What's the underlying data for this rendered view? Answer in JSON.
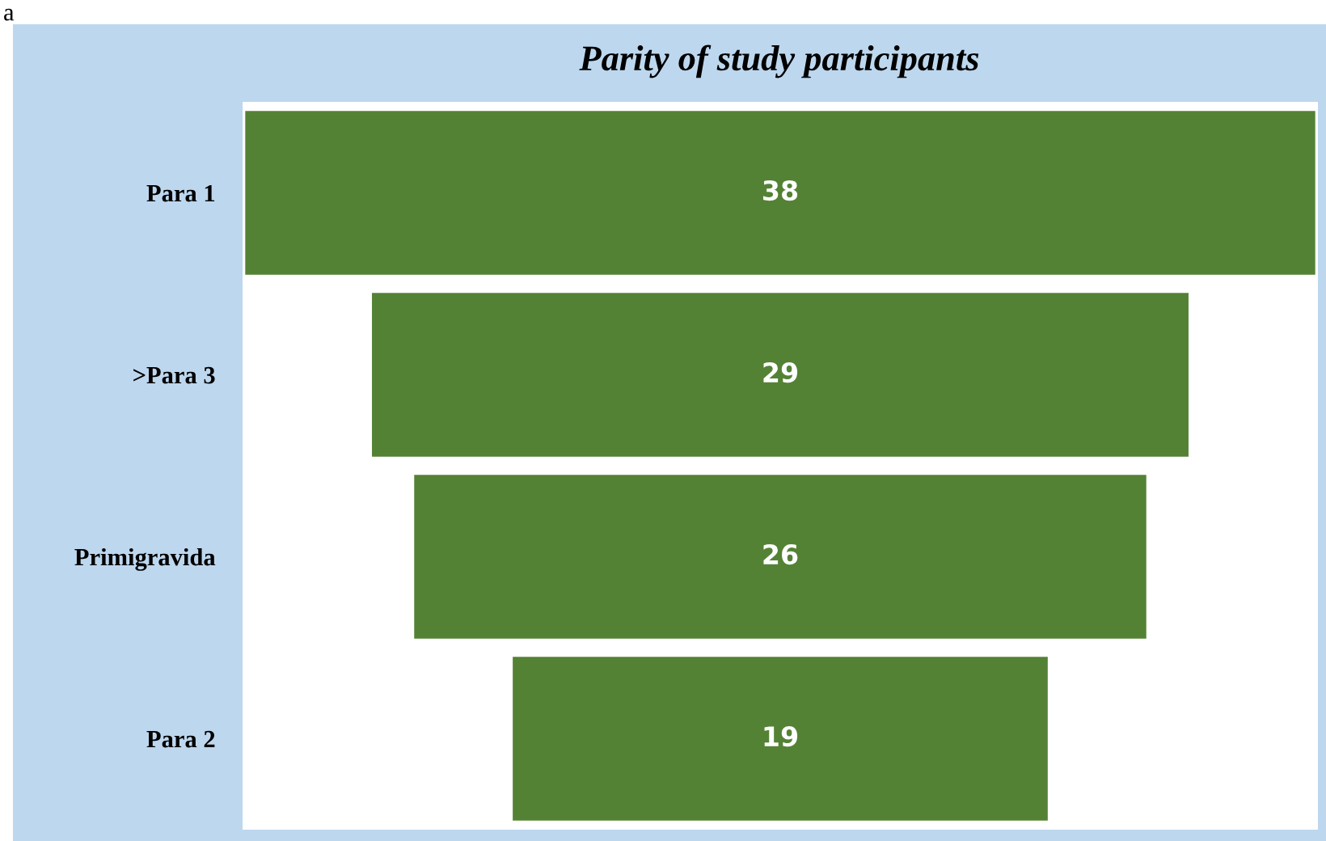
{
  "chart_data": {
    "type": "other",
    "title": "Parity of study participants",
    "categories": [
      "Para 1",
      ">Para 3",
      "Primigravida",
      "Para 2"
    ],
    "values": [
      38,
      29,
      26,
      19
    ],
    "color": "#548235",
    "data_labels": true,
    "annotations": [
      "a"
    ]
  }
}
